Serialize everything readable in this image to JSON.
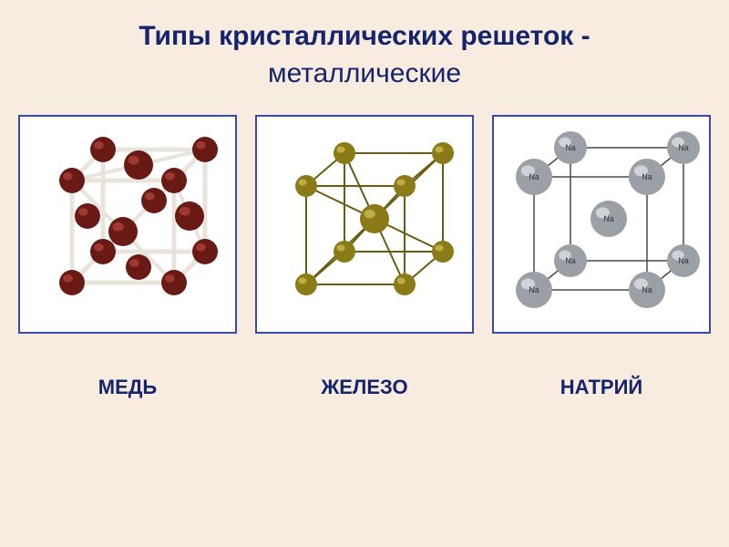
{
  "slide": {
    "background": "#f8ece1"
  },
  "title": {
    "line1": "Типы кристаллических решеток -",
    "line2": "металлические",
    "color": "#16256b"
  },
  "panels": {
    "border_color": "#3b4ba3",
    "caption_color": "#16256b",
    "copper": {
      "caption": "МЕДЬ",
      "structure_type": "fcc",
      "atom_color": "#6a1a14",
      "atom_highlight": "#a84034",
      "bond_color": "#e8e4dc",
      "atom_radius_corner": 14,
      "atom_radius_face": 16,
      "bond_width": 5
    },
    "iron": {
      "caption": "ЖЕЛЕЗО",
      "structure_type": "bcc",
      "atom_color": "#8a7a18",
      "atom_highlight": "#c8b648",
      "bond_color": "#6b5d10",
      "atom_radius_corner": 12,
      "atom_radius_center": 16,
      "bond_width": 2
    },
    "sodium": {
      "caption": "НАТРИЙ",
      "structure_type": "bcc",
      "atom_label": "Na",
      "atom_color": "#9aa0a6",
      "atom_highlight": "#d8dce0",
      "atom_label_color": "#333333",
      "bond_color": "#4a4a4a",
      "atom_radius": 20,
      "bond_width": 1.5,
      "label_fontsize": 9
    }
  }
}
